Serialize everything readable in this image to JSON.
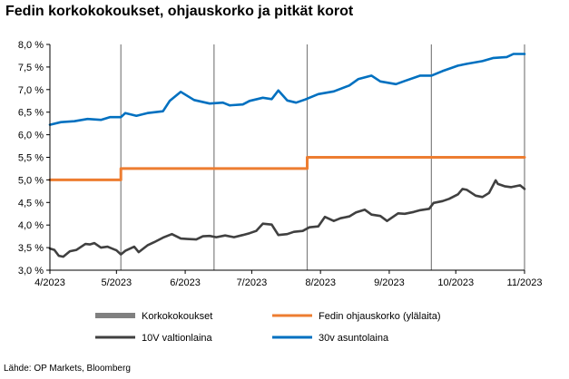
{
  "title": "Fedin korkokokoukset, ohjauskorko ja pitkät korot",
  "source": "Lähde: OP Markets, Bloomberg",
  "chart_data": {
    "type": "line",
    "title": "Fedin korkokokoukset, ohjauskorko ja pitkät korot",
    "xlabel": "",
    "ylabel": "",
    "x_ticks": [
      "4/2023",
      "5/2023",
      "6/2023",
      "7/2023",
      "8/2023",
      "9/2023",
      "10/2023",
      "11/2023"
    ],
    "y_ticks": [
      "3,0 %",
      "3,5 %",
      "4,0 %",
      "4,5 %",
      "5,0 %",
      "5,5 %",
      "6,0 %",
      "6,5 %",
      "7,0 %",
      "7,5 %",
      "8,0 %"
    ],
    "ylim": [
      3.0,
      8.0
    ],
    "xlim": [
      "2023-04-01",
      "2023-11-01"
    ],
    "grid": false,
    "legend_position": "bottom",
    "meetings": [
      "2023-05-03",
      "2023-06-14",
      "2023-07-26",
      "2023-09-20",
      "2023-11-01"
    ],
    "series": [
      {
        "name": "Korkokokoukset",
        "type": "vertical-lines",
        "color": "#808080",
        "x": [
          "2023-05-03",
          "2023-06-14",
          "2023-07-26",
          "2023-09-20",
          "2023-11-01"
        ]
      },
      {
        "name": "Fedin ohjauskorko (ylälaita)",
        "color": "#ed7d31",
        "points": [
          [
            "2023-04-01",
            5.0
          ],
          [
            "2023-05-03",
            5.0
          ],
          [
            "2023-05-03",
            5.25
          ],
          [
            "2023-07-26",
            5.25
          ],
          [
            "2023-07-26",
            5.5
          ],
          [
            "2023-11-01",
            5.5
          ]
        ]
      },
      {
        "name": "10V valtionlaina",
        "color": "#404040",
        "points": [
          [
            "2023-04-01",
            3.48
          ],
          [
            "2023-04-03",
            3.45
          ],
          [
            "2023-04-05",
            3.32
          ],
          [
            "2023-04-07",
            3.3
          ],
          [
            "2023-04-10",
            3.42
          ],
          [
            "2023-04-13",
            3.45
          ],
          [
            "2023-04-17",
            3.58
          ],
          [
            "2023-04-19",
            3.57
          ],
          [
            "2023-04-21",
            3.6
          ],
          [
            "2023-04-24",
            3.5
          ],
          [
            "2023-04-27",
            3.52
          ],
          [
            "2023-05-01",
            3.44
          ],
          [
            "2023-05-03",
            3.35
          ],
          [
            "2023-05-05",
            3.43
          ],
          [
            "2023-05-09",
            3.52
          ],
          [
            "2023-05-11",
            3.4
          ],
          [
            "2023-05-15",
            3.55
          ],
          [
            "2023-05-18",
            3.62
          ],
          [
            "2023-05-22",
            3.72
          ],
          [
            "2023-05-26",
            3.8
          ],
          [
            "2023-05-30",
            3.7
          ],
          [
            "2023-06-02",
            3.69
          ],
          [
            "2023-06-06",
            3.68
          ],
          [
            "2023-06-09",
            3.75
          ],
          [
            "2023-06-12",
            3.76
          ],
          [
            "2023-06-15",
            3.73
          ],
          [
            "2023-06-19",
            3.77
          ],
          [
            "2023-06-23",
            3.73
          ],
          [
            "2023-06-27",
            3.78
          ],
          [
            "2023-06-30",
            3.82
          ],
          [
            "2023-07-03",
            3.87
          ],
          [
            "2023-07-06",
            4.03
          ],
          [
            "2023-07-10",
            4.01
          ],
          [
            "2023-07-13",
            3.78
          ],
          [
            "2023-07-17",
            3.8
          ],
          [
            "2023-07-20",
            3.85
          ],
          [
            "2023-07-24",
            3.87
          ],
          [
            "2023-07-27",
            3.95
          ],
          [
            "2023-07-31",
            3.97
          ],
          [
            "2023-08-03",
            4.18
          ],
          [
            "2023-08-07",
            4.09
          ],
          [
            "2023-08-10",
            4.15
          ],
          [
            "2023-08-14",
            4.19
          ],
          [
            "2023-08-17",
            4.28
          ],
          [
            "2023-08-21",
            4.34
          ],
          [
            "2023-08-24",
            4.23
          ],
          [
            "2023-08-28",
            4.2
          ],
          [
            "2023-08-31",
            4.09
          ],
          [
            "2023-09-05",
            4.26
          ],
          [
            "2023-09-08",
            4.25
          ],
          [
            "2023-09-12",
            4.29
          ],
          [
            "2023-09-15",
            4.33
          ],
          [
            "2023-09-19",
            4.36
          ],
          [
            "2023-09-21",
            4.49
          ],
          [
            "2023-09-25",
            4.53
          ],
          [
            "2023-09-28",
            4.58
          ],
          [
            "2023-10-02",
            4.68
          ],
          [
            "2023-10-04",
            4.8
          ],
          [
            "2023-10-06",
            4.78
          ],
          [
            "2023-10-10",
            4.65
          ],
          [
            "2023-10-13",
            4.62
          ],
          [
            "2023-10-16",
            4.71
          ],
          [
            "2023-10-19",
            4.99
          ],
          [
            "2023-10-20",
            4.91
          ],
          [
            "2023-10-23",
            4.86
          ],
          [
            "2023-10-26",
            4.84
          ],
          [
            "2023-10-30",
            4.88
          ],
          [
            "2023-11-01",
            4.8
          ]
        ]
      },
      {
        "name": "30v asuntolaina",
        "color": "#0070c0",
        "points": [
          [
            "2023-04-01",
            6.22
          ],
          [
            "2023-04-06",
            6.28
          ],
          [
            "2023-04-12",
            6.3
          ],
          [
            "2023-04-18",
            6.35
          ],
          [
            "2023-04-24",
            6.33
          ],
          [
            "2023-04-28",
            6.39
          ],
          [
            "2023-05-03",
            6.39
          ],
          [
            "2023-05-05",
            6.48
          ],
          [
            "2023-05-10",
            6.42
          ],
          [
            "2023-05-15",
            6.48
          ],
          [
            "2023-05-22",
            6.52
          ],
          [
            "2023-05-25",
            6.75
          ],
          [
            "2023-05-30",
            6.95
          ],
          [
            "2023-06-05",
            6.77
          ],
          [
            "2023-06-12",
            6.69
          ],
          [
            "2023-06-18",
            6.71
          ],
          [
            "2023-06-21",
            6.65
          ],
          [
            "2023-06-27",
            6.67
          ],
          [
            "2023-06-30",
            6.75
          ],
          [
            "2023-07-06",
            6.82
          ],
          [
            "2023-07-10",
            6.79
          ],
          [
            "2023-07-13",
            6.98
          ],
          [
            "2023-07-17",
            6.76
          ],
          [
            "2023-07-21",
            6.71
          ],
          [
            "2023-07-25",
            6.78
          ],
          [
            "2023-07-31",
            6.9
          ],
          [
            "2023-08-07",
            6.96
          ],
          [
            "2023-08-14",
            7.09
          ],
          [
            "2023-08-18",
            7.23
          ],
          [
            "2023-08-24",
            7.31
          ],
          [
            "2023-08-28",
            7.18
          ],
          [
            "2023-09-04",
            7.12
          ],
          [
            "2023-09-08",
            7.19
          ],
          [
            "2023-09-15",
            7.31
          ],
          [
            "2023-09-20",
            7.31
          ],
          [
            "2023-09-25",
            7.41
          ],
          [
            "2023-10-02",
            7.53
          ],
          [
            "2023-10-06",
            7.57
          ],
          [
            "2023-10-13",
            7.63
          ],
          [
            "2023-10-18",
            7.7
          ],
          [
            "2023-10-24",
            7.72
          ],
          [
            "2023-10-27",
            7.79
          ],
          [
            "2023-11-01",
            7.79
          ]
        ]
      }
    ]
  }
}
